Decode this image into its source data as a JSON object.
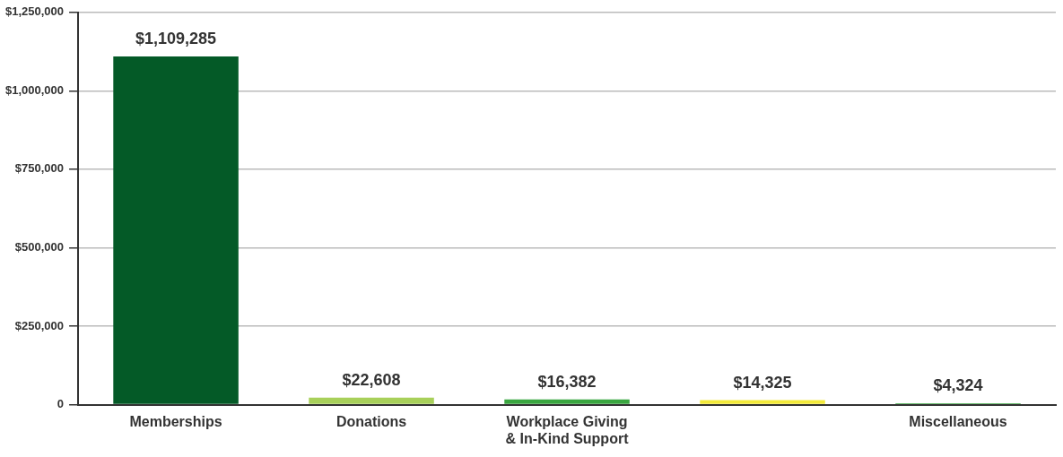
{
  "chart_data": {
    "type": "bar",
    "categories": [
      "Memberships",
      "Donations",
      "Workplace Giving & In-Kind Support",
      null,
      "Miscellaneous"
    ],
    "values": [
      1109285,
      22608,
      16382,
      14325,
      4324
    ],
    "colors": [
      "#045a27",
      "#a8d05a",
      "#3aa640",
      "#f2e93a",
      "#3aa640"
    ],
    "value_labels": [
      "$1,109,285",
      "$22,608",
      "$16,382",
      "$14,325",
      "$4,324"
    ],
    "ylim": [
      0,
      1250000
    ],
    "yticks": [
      0,
      {
        "value": 250000,
        "label": "$250,000"
      },
      {
        "value": 500000,
        "label": "$500,000"
      },
      {
        "value": 750000,
        "label": "$750,000"
      },
      {
        "value": 1000000,
        "label": "$1,000,000"
      },
      {
        "value": 1250000,
        "label": "$1,250,000"
      }
    ],
    "grid": "y",
    "legend": false
  }
}
